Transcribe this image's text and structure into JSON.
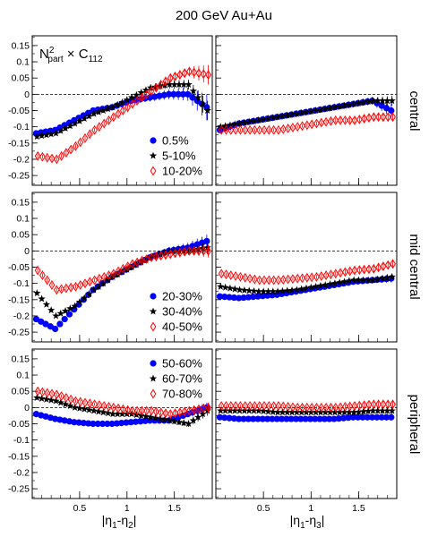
{
  "title": "200 GeV Au+Au",
  "ylabel_html": "N<sup>2</sup><sub>part</sub> × C<sub>112</sub>",
  "ylabel_parts": {
    "base": "N",
    "sup": "2",
    "sub": "part",
    "times": "×",
    "c": "C",
    "csub": "112"
  },
  "xlabel_left": "|η1-η2|",
  "xlabel_right": "|η1-η3|",
  "xlabel_left_parts": {
    "a": "|η",
    "a_sub": "1",
    "dash": "-η",
    "b_sub": "2",
    "end": "|"
  },
  "xlabel_right_parts": {
    "a": "|η",
    "a_sub": "1",
    "dash": "-η",
    "b_sub": "3",
    "end": "|"
  },
  "row_labels": [
    "central",
    "mid central",
    "peripheral"
  ],
  "colors": {
    "blue": "#0000ff",
    "black": "#000000",
    "red": "#ff0000"
  },
  "chart_data": {
    "type": "scatter",
    "layout": "3x2 panel grid, shared axes",
    "xlim": [
      0,
      1.9
    ],
    "ylim": [
      -0.28,
      0.18
    ],
    "x_ticks": [
      0.5,
      1,
      1.5
    ],
    "x_tick_labels": [
      "0.5",
      "1",
      "1.5"
    ],
    "y_ticks": [
      -0.25,
      -0.2,
      -0.15,
      -0.1,
      -0.05,
      0,
      0.05,
      0.1,
      0.15
    ],
    "y_tick_labels": [
      "-0.25",
      "-0.2",
      "-0.15",
      "-0.1",
      "-0.05",
      "0",
      "0.05",
      "0.1",
      "0.15"
    ],
    "reference_line": 0,
    "legend_entries": [
      {
        "row": 0,
        "labels": [
          "0.5%",
          "5-10%",
          "10-20%"
        ],
        "placement": "bottom-right of left panel"
      },
      {
        "row": 1,
        "labels": [
          "20-30%",
          "30-40%",
          "40-50%"
        ],
        "placement": "bottom-right of left panel"
      },
      {
        "row": 2,
        "labels": [
          "50-60%",
          "60-70%",
          "70-80%"
        ],
        "placement": "top-right of left panel"
      }
    ],
    "markers": [
      "filled circle (blue)",
      "star (black)",
      "open diamond (red)"
    ],
    "panels": [
      {
        "row": 0,
        "col": 0,
        "series": [
          {
            "name": "0.5%",
            "marker": "circle",
            "color": "blue",
            "x": [
              0.05,
              0.25,
              0.45,
              0.65,
              0.85,
              1.05,
              1.25,
              1.45,
              1.65,
              1.85
            ],
            "y": [
              -0.12,
              -0.11,
              -0.08,
              -0.05,
              -0.04,
              -0.02,
              -0.01,
              0.0,
              0.0,
              -0.04
            ],
            "err": [
              0.008,
              0.008,
              0.008,
              0.008,
              0.008,
              0.01,
              0.012,
              0.015,
              0.02,
              0.04
            ]
          },
          {
            "name": "5-10%",
            "marker": "star",
            "color": "black",
            "x": [
              0.05,
              0.25,
              0.45,
              0.65,
              0.85,
              1.05,
              1.25,
              1.45,
              1.65,
              1.85
            ],
            "y": [
              -0.13,
              -0.12,
              -0.09,
              -0.06,
              -0.04,
              -0.01,
              0.02,
              0.03,
              0.03,
              -0.05
            ],
            "err": [
              0.007,
              0.007,
              0.007,
              0.007,
              0.007,
              0.009,
              0.01,
              0.012,
              0.015,
              0.03
            ]
          },
          {
            "name": "10-20%",
            "marker": "diamond",
            "color": "red",
            "x": [
              0.05,
              0.25,
              0.45,
              0.65,
              0.85,
              1.05,
              1.25,
              1.45,
              1.65,
              1.85
            ],
            "y": [
              -0.19,
              -0.2,
              -0.16,
              -0.11,
              -0.07,
              -0.03,
              0.01,
              0.05,
              0.07,
              0.06
            ],
            "err": [
              0.006,
              0.006,
              0.006,
              0.006,
              0.007,
              0.008,
              0.01,
              0.012,
              0.015,
              0.03
            ]
          }
        ]
      },
      {
        "row": 0,
        "col": 1,
        "series": [
          {
            "name": "0.5%",
            "marker": "circle",
            "color": "blue",
            "x": [
              0.05,
              0.25,
              0.45,
              0.65,
              0.85,
              1.05,
              1.25,
              1.45,
              1.65,
              1.85
            ],
            "y": [
              -0.11,
              -0.09,
              -0.08,
              -0.07,
              -0.06,
              -0.05,
              -0.04,
              -0.03,
              -0.02,
              -0.05
            ],
            "err": [
              0.006,
              0.006,
              0.006,
              0.006,
              0.006,
              0.007,
              0.008,
              0.01,
              0.012,
              0.02
            ]
          },
          {
            "name": "5-10%",
            "marker": "star",
            "color": "black",
            "x": [
              0.05,
              0.25,
              0.45,
              0.65,
              0.85,
              1.05,
              1.25,
              1.45,
              1.65,
              1.85
            ],
            "y": [
              -0.1,
              -0.09,
              -0.08,
              -0.07,
              -0.06,
              -0.05,
              -0.04,
              -0.03,
              -0.02,
              -0.02
            ],
            "err": [
              0.005,
              0.005,
              0.005,
              0.005,
              0.005,
              0.006,
              0.007,
              0.008,
              0.01,
              0.015
            ]
          },
          {
            "name": "10-20%",
            "marker": "diamond",
            "color": "red",
            "x": [
              0.05,
              0.25,
              0.45,
              0.65,
              0.85,
              1.05,
              1.25,
              1.45,
              1.65,
              1.85
            ],
            "y": [
              -0.11,
              -0.11,
              -0.11,
              -0.11,
              -0.1,
              -0.09,
              -0.08,
              -0.08,
              -0.07,
              -0.07
            ],
            "err": [
              0.005,
              0.005,
              0.005,
              0.005,
              0.005,
              0.006,
              0.007,
              0.008,
              0.01,
              0.012
            ]
          }
        ]
      },
      {
        "row": 1,
        "col": 0,
        "series": [
          {
            "name": "20-30%",
            "marker": "circle",
            "color": "blue",
            "x": [
              0.05,
              0.25,
              0.45,
              0.65,
              0.85,
              1.05,
              1.25,
              1.45,
              1.65,
              1.85
            ],
            "y": [
              -0.21,
              -0.24,
              -0.18,
              -0.12,
              -0.08,
              -0.05,
              -0.02,
              0.0,
              0.01,
              0.03
            ],
            "err": [
              0.006,
              0.006,
              0.006,
              0.006,
              0.007,
              0.008,
              0.01,
              0.012,
              0.015,
              0.02
            ]
          },
          {
            "name": "30-40%",
            "marker": "star",
            "color": "black",
            "x": [
              0.05,
              0.25,
              0.45,
              0.65,
              0.85,
              1.05,
              1.25,
              1.45,
              1.65,
              1.85
            ],
            "y": [
              -0.13,
              -0.2,
              -0.17,
              -0.12,
              -0.08,
              -0.05,
              -0.02,
              0.0,
              0.0,
              0.01
            ],
            "err": [
              0.005,
              0.005,
              0.005,
              0.005,
              0.006,
              0.007,
              0.008,
              0.01,
              0.012,
              0.02
            ]
          },
          {
            "name": "40-50%",
            "marker": "diamond",
            "color": "red",
            "x": [
              0.05,
              0.25,
              0.45,
              0.65,
              0.85,
              1.05,
              1.25,
              1.45,
              1.65,
              1.85
            ],
            "y": [
              -0.06,
              -0.12,
              -0.11,
              -0.09,
              -0.07,
              -0.04,
              -0.02,
              -0.01,
              0.0,
              0.0
            ],
            "err": [
              0.006,
              0.006,
              0.006,
              0.006,
              0.006,
              0.007,
              0.008,
              0.01,
              0.012,
              0.02
            ]
          }
        ]
      },
      {
        "row": 1,
        "col": 1,
        "series": [
          {
            "name": "20-30%",
            "marker": "circle",
            "color": "blue",
            "x": [
              0.05,
              0.25,
              0.45,
              0.65,
              0.85,
              1.05,
              1.25,
              1.45,
              1.65,
              1.85
            ],
            "y": [
              -0.14,
              -0.145,
              -0.14,
              -0.135,
              -0.125,
              -0.115,
              -0.105,
              -0.095,
              -0.09,
              -0.085
            ],
            "err": [
              0.005,
              0.005,
              0.005,
              0.005,
              0.005,
              0.006,
              0.007,
              0.008,
              0.01,
              0.012
            ]
          },
          {
            "name": "30-40%",
            "marker": "star",
            "color": "black",
            "x": [
              0.05,
              0.25,
              0.45,
              0.65,
              0.85,
              1.05,
              1.25,
              1.45,
              1.65,
              1.85
            ],
            "y": [
              -0.11,
              -0.12,
              -0.125,
              -0.125,
              -0.12,
              -0.11,
              -0.1,
              -0.09,
              -0.09,
              -0.08
            ],
            "err": [
              0.004,
              0.004,
              0.004,
              0.004,
              0.004,
              0.005,
              0.006,
              0.007,
              0.008,
              0.01
            ]
          },
          {
            "name": "40-50%",
            "marker": "diamond",
            "color": "red",
            "x": [
              0.05,
              0.25,
              0.45,
              0.65,
              0.85,
              1.05,
              1.25,
              1.45,
              1.65,
              1.85
            ],
            "y": [
              -0.07,
              -0.08,
              -0.09,
              -0.09,
              -0.085,
              -0.08,
              -0.07,
              -0.06,
              -0.055,
              -0.04
            ],
            "err": [
              0.005,
              0.005,
              0.005,
              0.005,
              0.005,
              0.006,
              0.007,
              0.008,
              0.01,
              0.012
            ]
          }
        ]
      },
      {
        "row": 2,
        "col": 0,
        "series": [
          {
            "name": "50-60%",
            "marker": "circle",
            "color": "blue",
            "x": [
              0.05,
              0.25,
              0.45,
              0.65,
              0.85,
              1.05,
              1.25,
              1.45,
              1.65,
              1.85
            ],
            "y": [
              -0.02,
              -0.035,
              -0.045,
              -0.05,
              -0.05,
              -0.045,
              -0.04,
              -0.04,
              -0.02,
              0.0
            ],
            "err": [
              0.005,
              0.005,
              0.005,
              0.005,
              0.005,
              0.006,
              0.007,
              0.008,
              0.01,
              0.015
            ]
          },
          {
            "name": "60-70%",
            "marker": "star",
            "color": "black",
            "x": [
              0.05,
              0.25,
              0.45,
              0.65,
              0.85,
              1.05,
              1.25,
              1.45,
              1.65,
              1.85
            ],
            "y": [
              0.03,
              0.02,
              0.0,
              -0.01,
              -0.02,
              -0.02,
              -0.03,
              -0.04,
              -0.05,
              -0.01
            ],
            "err": [
              0.005,
              0.005,
              0.005,
              0.005,
              0.005,
              0.006,
              0.007,
              0.008,
              0.01,
              0.015
            ]
          },
          {
            "name": "70-80%",
            "marker": "diamond",
            "color": "red",
            "x": [
              0.05,
              0.25,
              0.45,
              0.65,
              0.85,
              1.05,
              1.25,
              1.45,
              1.65,
              1.85
            ],
            "y": [
              0.05,
              0.04,
              0.02,
              0.01,
              0.0,
              -0.01,
              -0.01,
              -0.02,
              -0.01,
              0.0
            ],
            "err": [
              0.005,
              0.005,
              0.005,
              0.005,
              0.005,
              0.006,
              0.007,
              0.008,
              0.01,
              0.015
            ]
          }
        ]
      },
      {
        "row": 2,
        "col": 1,
        "series": [
          {
            "name": "50-60%",
            "marker": "circle",
            "color": "blue",
            "x": [
              0.05,
              0.25,
              0.45,
              0.65,
              0.85,
              1.05,
              1.25,
              1.45,
              1.65,
              1.85
            ],
            "y": [
              -0.03,
              -0.035,
              -0.035,
              -0.035,
              -0.035,
              -0.035,
              -0.035,
              -0.03,
              -0.03,
              -0.03
            ],
            "err": [
              0.004,
              0.004,
              0.004,
              0.004,
              0.004,
              0.005,
              0.006,
              0.007,
              0.008,
              0.01
            ]
          },
          {
            "name": "60-70%",
            "marker": "star",
            "color": "black",
            "x": [
              0.05,
              0.25,
              0.45,
              0.65,
              0.85,
              1.05,
              1.25,
              1.45,
              1.65,
              1.85
            ],
            "y": [
              -0.01,
              -0.01,
              -0.01,
              -0.015,
              -0.015,
              -0.015,
              -0.015,
              -0.015,
              -0.01,
              -0.01
            ],
            "err": [
              0.004,
              0.004,
              0.004,
              0.004,
              0.004,
              0.005,
              0.006,
              0.007,
              0.008,
              0.01
            ]
          },
          {
            "name": "70-80%",
            "marker": "diamond",
            "color": "red",
            "x": [
              0.05,
              0.25,
              0.45,
              0.65,
              0.85,
              1.05,
              1.25,
              1.45,
              1.65,
              1.85
            ],
            "y": [
              0.005,
              0.005,
              0.005,
              0.005,
              0.0,
              0.0,
              0.0,
              0.005,
              0.01,
              0.01
            ],
            "err": [
              0.004,
              0.004,
              0.004,
              0.004,
              0.004,
              0.005,
              0.006,
              0.007,
              0.008,
              0.01
            ]
          }
        ]
      }
    ]
  }
}
